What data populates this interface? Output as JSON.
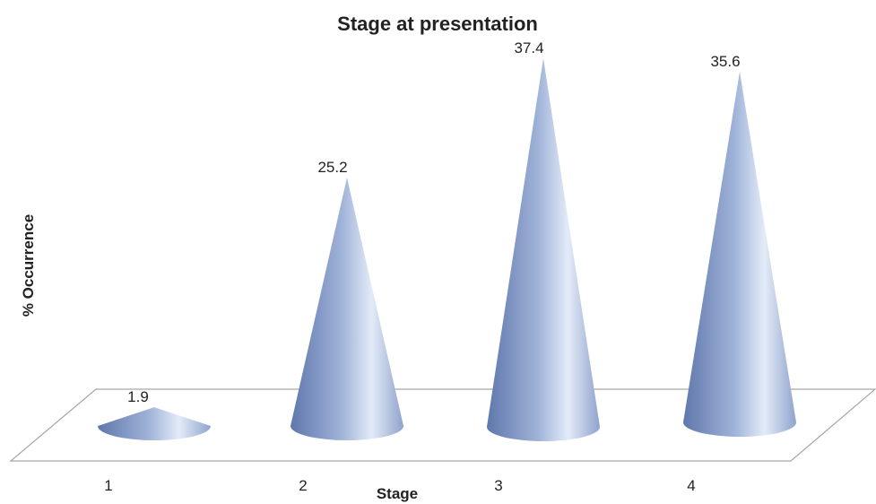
{
  "chart_data": {
    "type": "bar",
    "shape": "cone",
    "title": "Stage at presentation",
    "xlabel": "Stage",
    "ylabel": "% Occurrence",
    "categories": [
      "1",
      "2",
      "3",
      "4"
    ],
    "values": [
      1.9,
      25.2,
      37.4,
      35.6
    ],
    "data_labels": [
      "1.9",
      "25.2",
      "37.4",
      "35.6"
    ],
    "ylim": [
      0,
      37.4
    ],
    "grid": false,
    "legend": "none",
    "colors": {
      "cone_fill": "#9fb2d8",
      "cone_shadow": "#5f77ab",
      "cone_highlight": "#e3ebf8"
    }
  }
}
